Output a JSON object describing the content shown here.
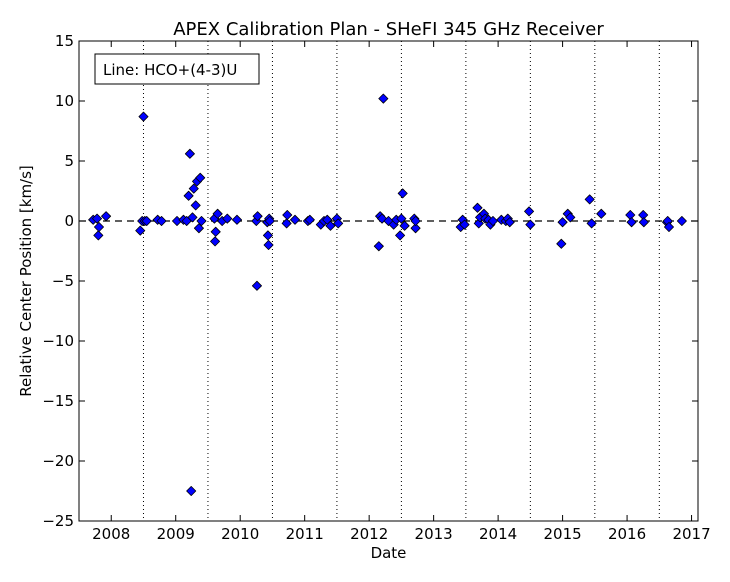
{
  "chart_data": {
    "type": "scatter",
    "title": "APEX Calibration Plan - SHeFI 345 GHz Receiver",
    "xlabel": "Date",
    "ylabel": "Relative Center Position [km/s]",
    "legend_text": "Line: HCO+(4-3)U",
    "legend_position": "top-left",
    "xlim": [
      2007.5,
      2017.1
    ],
    "ylim": [
      -25,
      15
    ],
    "x_ticks": [
      2008,
      2009,
      2010,
      2011,
      2012,
      2013,
      2014,
      2015,
      2016,
      2017
    ],
    "x_tick_labels": [
      "2008",
      "2009",
      "2010",
      "2011",
      "2012",
      "2013",
      "2014",
      "2015",
      "2016",
      "2017"
    ],
    "y_ticks": [
      15,
      10,
      5,
      0,
      -5,
      -10,
      -15,
      -20,
      -25
    ],
    "y_tick_labels": [
      "15",
      "10",
      "5",
      "0",
      "−5",
      "−10",
      "−15",
      "−20",
      "−25"
    ],
    "reference_line_y": 0,
    "vertical_dotted_lines_x": [
      2008.5,
      2009.5,
      2010.5,
      2011.5,
      2012.5,
      2013.5,
      2014.5,
      2015.5,
      2016.5
    ],
    "marker_color": "#0000ff",
    "marker_edge_color": "#000000",
    "series": [
      {
        "x": [
          2007.72,
          2007.78,
          2007.8,
          2007.81,
          2007.92,
          2008.45,
          2008.48,
          2008.5,
          2008.52,
          2008.55,
          2008.72,
          2008.78,
          2009.02,
          2009.12,
          2009.17,
          2009.2,
          2009.22,
          2009.24,
          2009.26,
          2009.28,
          2009.31,
          2009.33,
          2009.36,
          2009.38,
          2009.4,
          2009.6,
          2009.61,
          2009.62,
          2009.65,
          2009.72,
          2009.8,
          2009.95,
          2010.25,
          2010.26,
          2010.27,
          2010.42,
          2010.43,
          2010.44,
          2010.45,
          2010.46,
          2010.72,
          2010.73,
          2010.85,
          2011.05,
          2011.08,
          2011.25,
          2011.3,
          2011.35,
          2011.4,
          2011.5,
          2011.52,
          2012.15,
          2012.17,
          2012.2,
          2012.22,
          2012.3,
          2012.38,
          2012.42,
          2012.48,
          2012.5,
          2012.52,
          2012.55,
          2012.7,
          2012.72,
          2012.72,
          2013.42,
          2013.45,
          2013.48,
          2013.68,
          2013.7,
          2013.72,
          2013.78,
          2013.8,
          2013.85,
          2013.88,
          2013.92,
          2014.05,
          2014.12,
          2014.15,
          2014.18,
          2014.48,
          2014.5,
          2014.98,
          2015.0,
          2015.08,
          2015.12,
          2015.42,
          2015.45,
          2015.6,
          2016.05,
          2016.07,
          2016.25,
          2016.26,
          2016.62,
          2016.63,
          2016.65,
          2016.85
        ],
        "y": [
          0.1,
          0.2,
          -1.2,
          -0.5,
          0.4,
          -0.8,
          0.0,
          8.7,
          0.0,
          0.0,
          0.1,
          0.0,
          0.0,
          0.1,
          0.0,
          2.1,
          5.6,
          -22.5,
          0.3,
          2.7,
          1.3,
          3.3,
          -0.6,
          3.6,
          0.0,
          0.2,
          -1.7,
          -0.9,
          0.6,
          0.0,
          0.2,
          0.1,
          0.0,
          -5.4,
          0.4,
          -0.1,
          -1.2,
          -2.0,
          0.2,
          0.0,
          -0.2,
          0.5,
          0.1,
          0.0,
          0.1,
          -0.3,
          0.0,
          0.1,
          -0.4,
          0.2,
          -0.2,
          -2.1,
          0.4,
          0.2,
          10.2,
          0.0,
          -0.3,
          0.1,
          -1.2,
          0.2,
          2.3,
          -0.4,
          0.2,
          -0.6,
          0.0,
          -0.5,
          0.1,
          -0.3,
          1.1,
          -0.2,
          0.3,
          0.6,
          0.2,
          0.1,
          -0.3,
          0.0,
          0.1,
          0.0,
          0.2,
          -0.1,
          0.8,
          -0.3,
          -1.9,
          -0.1,
          0.6,
          0.3,
          1.8,
          -0.2,
          0.6,
          0.5,
          -0.1,
          0.5,
          -0.1,
          -0.1,
          0.0,
          -0.5,
          0.0
        ]
      }
    ]
  }
}
